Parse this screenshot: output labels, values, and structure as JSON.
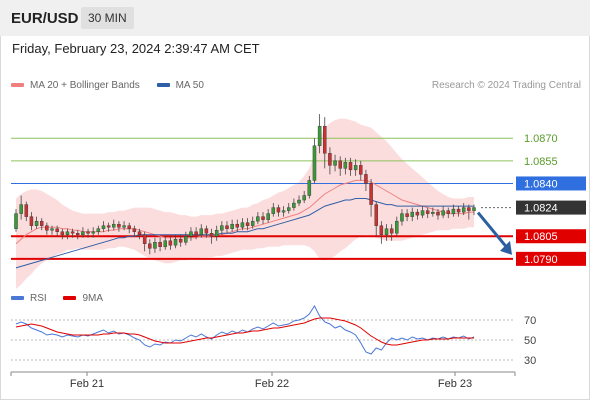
{
  "header": {
    "symbol": "EUR/USD",
    "interval": "30 MIN"
  },
  "datetime": "Friday, February 23, 2024 2:39:47 AM CET",
  "legend": {
    "ma20": {
      "label": "MA 20 + Bollinger Bands",
      "color": "#f08080"
    },
    "ma50": {
      "label": "MA 50",
      "color": "#2f5fa8"
    }
  },
  "copyright": "Research © 2024 Trading Central",
  "rsi_legend": {
    "rsi": {
      "label": "RSI",
      "color": "#4a78d6"
    },
    "ma9": {
      "label": "9MA",
      "color": "#e00000"
    }
  },
  "chart_data": [
    {
      "type": "candlestick",
      "ylim": [
        1.0772,
        1.0898
      ],
      "x_ticks": [
        "Feb 21",
        "Feb 22",
        "Feb 23"
      ],
      "levels": [
        {
          "value": 1.087,
          "label": "1.0870",
          "kind": "target",
          "color": "#8dc25a"
        },
        {
          "value": 1.0855,
          "label": "1.0855",
          "kind": "target",
          "color": "#8dc25a"
        },
        {
          "value": 1.084,
          "label": "1.0840",
          "kind": "pivot",
          "color": "#2f6fe0"
        },
        {
          "value": 1.0824,
          "label": "1.0824",
          "kind": "last",
          "color": "#333333"
        },
        {
          "value": 1.0805,
          "label": "1.0805",
          "kind": "support",
          "color": "#e00000"
        },
        {
          "value": 1.079,
          "label": "1.0790",
          "kind": "support",
          "color": "#e00000"
        }
      ],
      "candles": [
        [
          1.081,
          1.082,
          1.0808,
          1.0823
        ],
        [
          1.082,
          1.0826,
          1.0816,
          1.0832
        ],
        [
          1.0826,
          1.0818,
          1.0815,
          1.0828
        ],
        [
          1.0818,
          1.0812,
          1.0809,
          1.0821
        ],
        [
          1.0812,
          1.0815,
          1.081,
          1.0818
        ],
        [
          1.0815,
          1.0812,
          1.0809,
          1.0817
        ],
        [
          1.0812,
          1.0809,
          1.0806,
          1.0814
        ],
        [
          1.0809,
          1.081,
          1.0806,
          1.0812
        ],
        [
          1.081,
          1.0808,
          1.0805,
          1.0812
        ],
        [
          1.0808,
          1.0806,
          1.0803,
          1.081
        ],
        [
          1.0806,
          1.0808,
          1.0803,
          1.081
        ],
        [
          1.0808,
          1.0807,
          1.0804,
          1.081
        ],
        [
          1.0807,
          1.0806,
          1.0803,
          1.0809
        ],
        [
          1.0806,
          1.0808,
          1.0804,
          1.0811
        ],
        [
          1.0808,
          1.0807,
          1.0804,
          1.081
        ],
        [
          1.0807,
          1.0808,
          1.0804,
          1.0811
        ],
        [
          1.0808,
          1.081,
          1.0806,
          1.0812
        ],
        [
          1.081,
          1.0812,
          1.0808,
          1.0815
        ],
        [
          1.0812,
          1.0811,
          1.0808,
          1.0814
        ],
        [
          1.0811,
          1.0813,
          1.0809,
          1.0816
        ],
        [
          1.0813,
          1.0811,
          1.0808,
          1.0815
        ],
        [
          1.0811,
          1.0812,
          1.0809,
          1.0815
        ],
        [
          1.0812,
          1.081,
          1.0807,
          1.0814
        ],
        [
          1.081,
          1.0808,
          1.0805,
          1.0812
        ],
        [
          1.0808,
          1.0806,
          1.0803,
          1.081
        ],
        [
          1.0806,
          1.08,
          1.0795,
          1.0808
        ],
        [
          1.08,
          1.0797,
          1.0793,
          1.0803
        ],
        [
          1.0797,
          1.0801,
          1.0794,
          1.0804
        ],
        [
          1.0801,
          1.0798,
          1.0795,
          1.0804
        ],
        [
          1.0798,
          1.0802,
          1.0796,
          1.0805
        ],
        [
          1.0802,
          1.0799,
          1.0796,
          1.0805
        ],
        [
          1.0799,
          1.0803,
          1.0797,
          1.0806
        ],
        [
          1.0803,
          1.0801,
          1.0798,
          1.0806
        ],
        [
          1.0801,
          1.0805,
          1.0799,
          1.0808
        ],
        [
          1.0805,
          1.0808,
          1.0802,
          1.0811
        ],
        [
          1.0808,
          1.0806,
          1.0803,
          1.0811
        ],
        [
          1.0806,
          1.081,
          1.0804,
          1.0813
        ],
        [
          1.081,
          1.0807,
          1.0804,
          1.0812
        ],
        [
          1.0807,
          1.0805,
          1.08,
          1.081
        ],
        [
          1.0805,
          1.0809,
          1.0802,
          1.0812
        ],
        [
          1.0809,
          1.0812,
          1.0806,
          1.0815
        ],
        [
          1.0812,
          1.081,
          1.0807,
          1.0815
        ],
        [
          1.081,
          1.0813,
          1.0808,
          1.0816
        ],
        [
          1.0813,
          1.0811,
          1.0808,
          1.0816
        ],
        [
          1.0811,
          1.0814,
          1.0809,
          1.0817
        ],
        [
          1.0814,
          1.0812,
          1.0809,
          1.0817
        ],
        [
          1.0812,
          1.0815,
          1.081,
          1.0818
        ],
        [
          1.0815,
          1.0818,
          1.0813,
          1.0821
        ],
        [
          1.0818,
          1.0816,
          1.0813,
          1.0821
        ],
        [
          1.0816,
          1.082,
          1.0814,
          1.0823
        ],
        [
          1.082,
          1.0824,
          1.0818,
          1.0827
        ],
        [
          1.0824,
          1.0821,
          1.0818,
          1.0826
        ],
        [
          1.0821,
          1.0822,
          1.0818,
          1.0825
        ],
        [
          1.0822,
          1.0824,
          1.082,
          1.0827
        ],
        [
          1.0824,
          1.0827,
          1.0822,
          1.083
        ],
        [
          1.0827,
          1.0829,
          1.0825,
          1.0832
        ],
        [
          1.0829,
          1.0832,
          1.0827,
          1.0835
        ],
        [
          1.0832,
          1.0842,
          1.083,
          1.0845
        ],
        [
          1.0842,
          1.0865,
          1.084,
          1.087
        ],
        [
          1.0865,
          1.0878,
          1.086,
          1.0886
        ],
        [
          1.0878,
          1.086,
          1.085,
          1.0884
        ],
        [
          1.086,
          1.0852,
          1.0846,
          1.0864
        ],
        [
          1.0852,
          1.0855,
          1.0848,
          1.0859
        ],
        [
          1.0855,
          1.085,
          1.0845,
          1.0858
        ],
        [
          1.085,
          1.0854,
          1.0846,
          1.0857
        ],
        [
          1.0854,
          1.0849,
          1.0845,
          1.0857
        ],
        [
          1.0849,
          1.0852,
          1.0845,
          1.0856
        ],
        [
          1.0852,
          1.0846,
          1.0842,
          1.0855
        ],
        [
          1.0846,
          1.084,
          1.0835,
          1.0849
        ],
        [
          1.084,
          1.0826,
          1.0818,
          1.0843
        ],
        [
          1.0826,
          1.0812,
          1.0805,
          1.0828
        ],
        [
          1.0812,
          1.0806,
          1.08,
          1.0815
        ],
        [
          1.0806,
          1.081,
          1.0802,
          1.0813
        ],
        [
          1.081,
          1.0807,
          1.0802,
          1.0813
        ],
        [
          1.0807,
          1.0815,
          1.0805,
          1.0818
        ],
        [
          1.0815,
          1.082,
          1.0812,
          1.0823
        ],
        [
          1.082,
          1.0818,
          1.0815,
          1.0823
        ],
        [
          1.0818,
          1.0821,
          1.0815,
          1.0824
        ],
        [
          1.0821,
          1.0819,
          1.0816,
          1.0823
        ],
        [
          1.0819,
          1.0822,
          1.0817,
          1.0825
        ],
        [
          1.0822,
          1.082,
          1.0817,
          1.0824
        ],
        [
          1.082,
          1.0821,
          1.0818,
          1.0824
        ],
        [
          1.0821,
          1.0819,
          1.0816,
          1.0823
        ],
        [
          1.0819,
          1.0822,
          1.0817,
          1.0825
        ],
        [
          1.0822,
          1.082,
          1.0817,
          1.0824
        ],
        [
          1.082,
          1.0823,
          1.0818,
          1.0826
        ],
        [
          1.0823,
          1.0821,
          1.0818,
          1.0825
        ],
        [
          1.0821,
          1.0824,
          1.0819,
          1.0827
        ],
        [
          1.0824,
          1.0822,
          1.0816,
          1.0826
        ],
        [
          1.0822,
          1.0824,
          1.0819,
          1.0826
        ]
      ],
      "ma50": [
        1.0784,
        1.0785,
        1.0786,
        1.0787,
        1.0788,
        1.0789,
        1.079,
        1.0791,
        1.0792,
        1.0793,
        1.0794,
        1.0795,
        1.0796,
        1.0797,
        1.0798,
        1.0799,
        1.08,
        1.0801,
        1.0802,
        1.0803,
        1.0804,
        1.0804,
        1.0805,
        1.0805,
        1.0806,
        1.0806,
        1.0806,
        1.0806,
        1.0806,
        1.0806,
        1.0806,
        1.0806,
        1.0806,
        1.0806,
        1.0806,
        1.0806,
        1.0806,
        1.0806,
        1.0806,
        1.0806,
        1.0807,
        1.0807,
        1.0807,
        1.0808,
        1.0808,
        1.0808,
        1.0809,
        1.081,
        1.081,
        1.0811,
        1.0812,
        1.0813,
        1.0814,
        1.0815,
        1.0816,
        1.0817,
        1.0818,
        1.0819,
        1.0821,
        1.0823,
        1.0825,
        1.0826,
        1.0827,
        1.0828,
        1.0829,
        1.0829,
        1.083,
        1.083,
        1.083,
        1.0829,
        1.0828,
        1.0827,
        1.0826,
        1.0826,
        1.0825,
        1.0825,
        1.0825,
        1.0825,
        1.0825,
        1.0825,
        1.0825,
        1.0825,
        1.0825,
        1.0825,
        1.0825,
        1.0825,
        1.0825,
        1.0825,
        1.0825,
        1.0825
      ],
      "ma20": [
        1.08,
        1.0803,
        1.0806,
        1.0808,
        1.081,
        1.0811,
        1.0811,
        1.0811,
        1.0811,
        1.081,
        1.081,
        1.0809,
        1.0809,
        1.0808,
        1.0808,
        1.0808,
        1.0808,
        1.0808,
        1.0809,
        1.0809,
        1.081,
        1.081,
        1.081,
        1.081,
        1.0809,
        1.0808,
        1.0807,
        1.0806,
        1.0805,
        1.0804,
        1.0804,
        1.0804,
        1.0804,
        1.0804,
        1.0804,
        1.0804,
        1.0805,
        1.0805,
        1.0805,
        1.0806,
        1.0806,
        1.0807,
        1.0808,
        1.0809,
        1.081,
        1.081,
        1.0811,
        1.0812,
        1.0813,
        1.0814,
        1.0815,
        1.0816,
        1.0817,
        1.0818,
        1.0819,
        1.082,
        1.0822,
        1.0824,
        1.0827,
        1.083,
        1.0833,
        1.0835,
        1.0837,
        1.0839,
        1.084,
        1.0841,
        1.0842,
        1.0842,
        1.0842,
        1.0841,
        1.0839,
        1.0837,
        1.0835,
        1.0833,
        1.0831,
        1.0829,
        1.0828,
        1.0827,
        1.0826,
        1.0825,
        1.0824,
        1.0823,
        1.0822,
        1.0821,
        1.082,
        1.082,
        1.082,
        1.082,
        1.0821,
        1.0821
      ],
      "bb_width": [
        0.003,
        0.003,
        0.0029,
        0.0028,
        0.0026,
        0.0024,
        0.0022,
        0.002,
        0.0018,
        0.0016,
        0.0014,
        0.0013,
        0.0012,
        0.0012,
        0.0012,
        0.0012,
        0.0012,
        0.0012,
        0.0012,
        0.0012,
        0.0012,
        0.0012,
        0.0013,
        0.0014,
        0.0015,
        0.0016,
        0.0017,
        0.0017,
        0.0017,
        0.0017,
        0.0017,
        0.0016,
        0.0015,
        0.0015,
        0.0014,
        0.0014,
        0.0014,
        0.0014,
        0.0014,
        0.0014,
        0.0014,
        0.0014,
        0.0014,
        0.0014,
        0.0014,
        0.0014,
        0.0015,
        0.0015,
        0.0016,
        0.0016,
        0.0017,
        0.0018,
        0.0018,
        0.0019,
        0.002,
        0.0021,
        0.0023,
        0.0026,
        0.0032,
        0.004,
        0.0044,
        0.0045,
        0.0045,
        0.0044,
        0.0043,
        0.0041,
        0.0039,
        0.0037,
        0.0036,
        0.0036,
        0.0035,
        0.0034,
        0.0033,
        0.0031,
        0.0029,
        0.0027,
        0.0025,
        0.0023,
        0.0021,
        0.0019,
        0.0017,
        0.0015,
        0.0013,
        0.0012,
        0.0011,
        0.001,
        0.001,
        0.001,
        0.001,
        0.001
      ],
      "forecast_arrow": {
        "from": 1.0822,
        "to": 1.079
      }
    },
    {
      "type": "line",
      "indicator": "RSI",
      "ylim": [
        20,
        80
      ],
      "y_ticks": [
        70,
        50,
        30
      ],
      "series": [
        {
          "name": "RSI",
          "color": "#4a78d6",
          "values": [
            66,
            68,
            66,
            62,
            60,
            58,
            55,
            56,
            55,
            53,
            55,
            54,
            53,
            55,
            54,
            56,
            58,
            60,
            57,
            59,
            56,
            57,
            55,
            52,
            50,
            45,
            43,
            46,
            45,
            48,
            47,
            50,
            49,
            52,
            55,
            53,
            56,
            53,
            51,
            55,
            58,
            56,
            59,
            57,
            60,
            58,
            61,
            63,
            61,
            64,
            67,
            64,
            65,
            66,
            69,
            70,
            72,
            76,
            84,
            74,
            68,
            66,
            62,
            64,
            60,
            58,
            55,
            47,
            38,
            36,
            42,
            40,
            47,
            52,
            50,
            52,
            50,
            53,
            51,
            52,
            50,
            52,
            51,
            53,
            51,
            53,
            52,
            54,
            51,
            53
          ]
        },
        {
          "name": "9MA",
          "color": "#e00000",
          "values": [
            63,
            64,
            65,
            66,
            65,
            64,
            62,
            60,
            58,
            57,
            56,
            55,
            55,
            55,
            55,
            55,
            55,
            56,
            56,
            57,
            57,
            57,
            56,
            56,
            55,
            53,
            51,
            49,
            48,
            47,
            47,
            47,
            47,
            48,
            49,
            50,
            51,
            52,
            52,
            53,
            54,
            55,
            56,
            57,
            57,
            58,
            59,
            59,
            60,
            61,
            62,
            62,
            63,
            64,
            65,
            66,
            67,
            69,
            71,
            72,
            72,
            72,
            71,
            70,
            69,
            67,
            65,
            62,
            58,
            54,
            51,
            48,
            46,
            45,
            45,
            46,
            47,
            48,
            49,
            50,
            50,
            51,
            51,
            51,
            51,
            52,
            52,
            52,
            52,
            52
          ]
        }
      ]
    }
  ]
}
